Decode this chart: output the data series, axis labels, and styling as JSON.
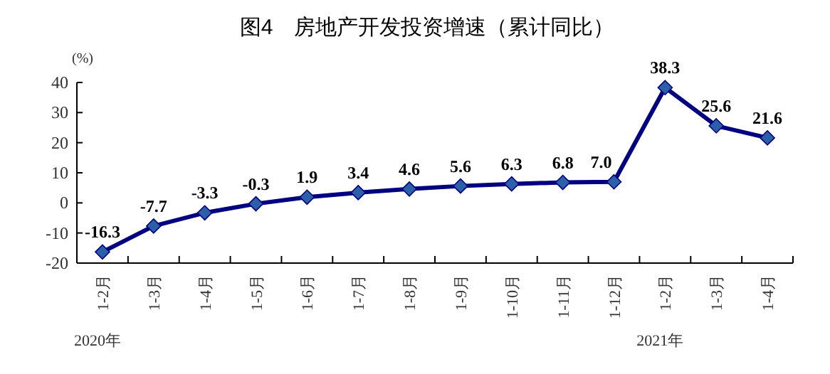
{
  "chart_data": {
    "type": "line",
    "title": "图4　房地产开发投资增速（累计同比）",
    "ylabel": "(%)",
    "categories": [
      "1-2月",
      "1-3月",
      "1-4月",
      "1-5月",
      "1-6月",
      "1-7月",
      "1-8月",
      "1-9月",
      "1-10月",
      "1-11月",
      "1-12月",
      "1-2月",
      "1-3月",
      "1-4月"
    ],
    "series": [
      {
        "color": "#000080",
        "values": [
          -16.3,
          -7.7,
          -3.3,
          -0.3,
          1.9,
          3.4,
          4.6,
          5.6,
          6.3,
          6.8,
          7.0,
          38.3,
          25.6,
          21.6
        ],
        "value_labels": [
          "-16.3",
          "-7.7",
          "-3.3",
          "-0.3",
          "1.9",
          "3.4",
          "4.6",
          "5.6",
          "6.3",
          "6.8",
          "7.0",
          "38.3",
          "25.6",
          "21.6"
        ]
      }
    ],
    "ylim": [
      -20,
      40
    ],
    "yticks": [
      -20,
      -10,
      0,
      10,
      20,
      30,
      40
    ],
    "annotations": [
      "2020年",
      "2021年"
    ],
    "marker": "diamond",
    "grid": false
  }
}
